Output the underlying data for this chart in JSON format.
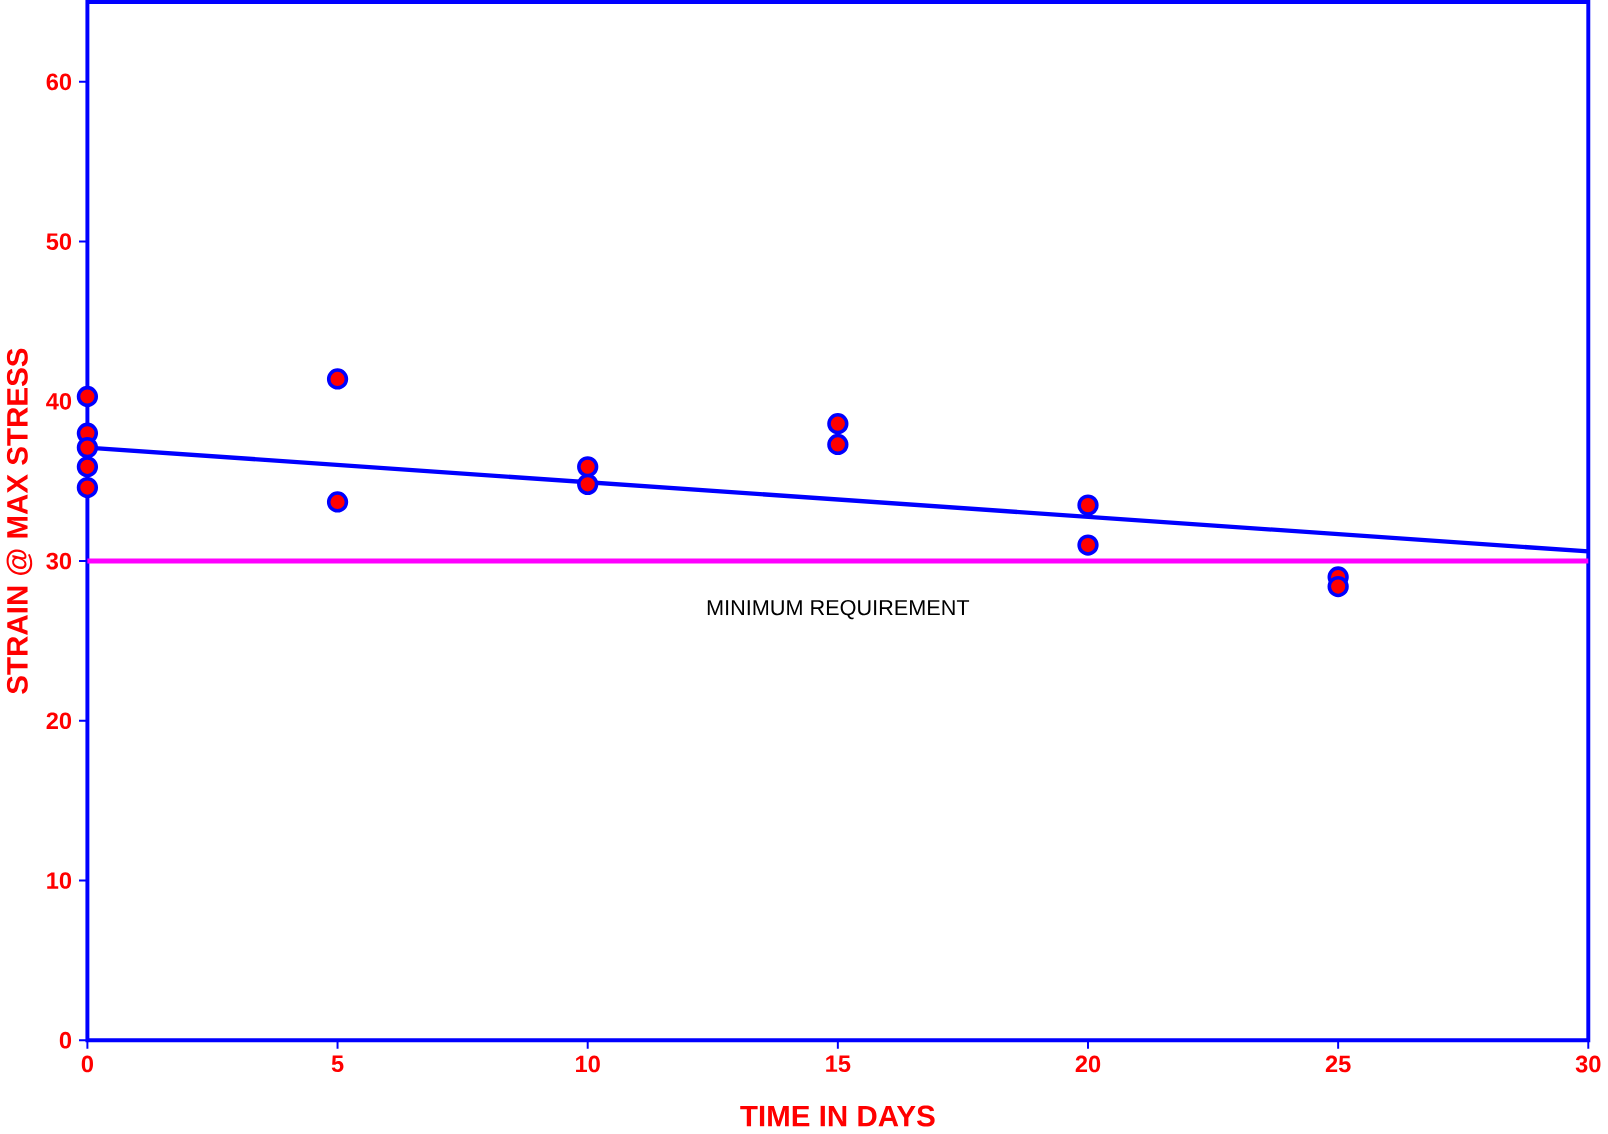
{
  "chart_data": {
    "type": "scatter",
    "xlabel": "TIME IN DAYS",
    "ylabel": "STRAIN @ MAX STRESS",
    "xlim": [
      0,
      30
    ],
    "ylim": [
      0,
      65
    ],
    "xticks": [
      0,
      5,
      10,
      15,
      20,
      25,
      30
    ],
    "yticks": [
      0,
      10,
      20,
      30,
      40,
      50,
      60
    ],
    "grid": false,
    "series": [
      {
        "marker": "circle",
        "color": "#ff0000",
        "x": [
          0,
          0,
          0,
          0,
          0,
          5,
          5,
          10,
          10,
          15,
          15,
          20,
          20,
          25,
          25
        ],
        "values": [
          40.3,
          38.0,
          37.1,
          35.9,
          34.6,
          41.4,
          33.7,
          35.9,
          34.8,
          38.6,
          37.3,
          33.5,
          31.0,
          29.0,
          28.4
        ]
      },
      {
        "type": "line",
        "marker": "none",
        "color": "#0000ff",
        "x": [
          0,
          30
        ],
        "values": [
          37.1,
          30.6
        ]
      }
    ],
    "ref_lines": [
      {
        "axis": "y",
        "value": 30,
        "label": "MINIMUM REQUIREMENT",
        "color": "#ff00ff"
      }
    ]
  }
}
